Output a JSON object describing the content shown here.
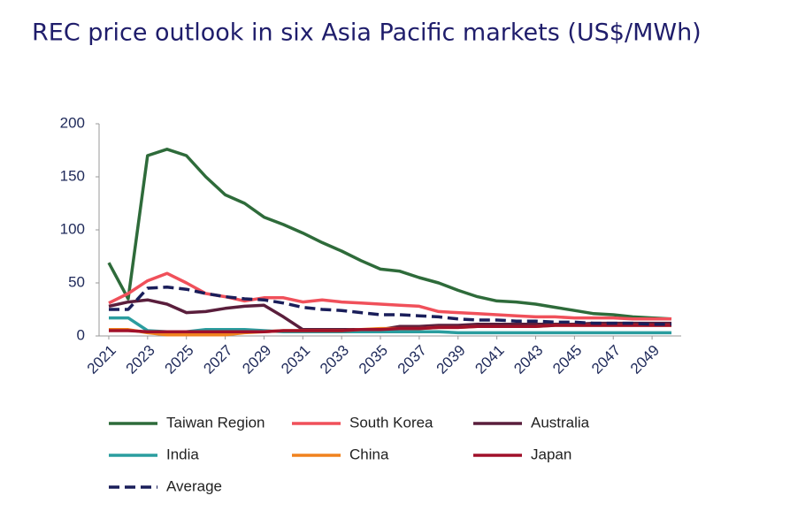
{
  "chart_data": {
    "type": "line",
    "title": "REC price outlook in six Asia Pacific markets (US$/MWh)",
    "x": [
      2021,
      2022,
      2023,
      2024,
      2025,
      2026,
      2027,
      2028,
      2029,
      2030,
      2031,
      2032,
      2033,
      2034,
      2035,
      2036,
      2037,
      2038,
      2039,
      2040,
      2041,
      2042,
      2043,
      2044,
      2045,
      2046,
      2047,
      2048,
      2049,
      2050
    ],
    "xlim": [
      2020.5,
      2050.5
    ],
    "xticks": [
      2021,
      2023,
      2025,
      2027,
      2029,
      2031,
      2033,
      2035,
      2037,
      2039,
      2041,
      2043,
      2045,
      2047,
      2049
    ],
    "ylim": [
      0,
      200
    ],
    "yticks": [
      0,
      50,
      100,
      150,
      200
    ],
    "grid": false,
    "legend": "bottom",
    "series": [
      {
        "name": "Taiwan Region",
        "color": "#2e6b3a",
        "style": "solid",
        "values": [
          69,
          35,
          170,
          176,
          170,
          150,
          133,
          125,
          112,
          105,
          97,
          88,
          80,
          71,
          63,
          61,
          55,
          50,
          43,
          37,
          33,
          32,
          30,
          27,
          24,
          21,
          20,
          18,
          17,
          16
        ]
      },
      {
        "name": "South Korea",
        "color": "#f0505a",
        "style": "solid",
        "values": [
          31,
          40,
          52,
          59,
          50,
          40,
          37,
          33,
          36,
          36,
          32,
          34,
          32,
          31,
          30,
          29,
          28,
          23,
          22,
          21,
          20,
          19,
          18,
          18,
          17,
          17,
          17,
          16,
          16,
          16
        ]
      },
      {
        "name": "Australia",
        "color": "#5a1e3c",
        "style": "solid",
        "values": [
          28,
          32,
          34,
          30,
          22,
          23,
          26,
          28,
          29,
          18,
          6,
          6,
          6,
          6,
          6,
          9,
          9,
          10,
          10,
          11,
          11,
          11,
          11,
          11,
          11,
          12,
          12,
          12,
          12,
          12
        ]
      },
      {
        "name": "India",
        "color": "#2a9d9f",
        "style": "solid",
        "values": [
          17,
          17,
          5,
          4,
          4,
          6,
          6,
          6,
          5,
          4,
          4,
          4,
          4,
          4,
          4,
          4,
          4,
          4,
          3,
          3,
          3,
          3,
          3,
          3,
          3,
          3,
          3,
          3,
          3,
          3
        ]
      },
      {
        "name": "China",
        "color": "#f0821e",
        "style": "solid",
        "values": [
          6,
          6,
          3,
          1,
          1,
          1,
          1,
          3,
          4,
          5,
          5,
          5,
          5,
          6,
          7,
          7,
          7,
          8,
          8,
          9,
          9,
          9,
          9,
          10,
          10,
          10,
          10,
          10,
          10,
          10
        ]
      },
      {
        "name": "Japan",
        "color": "#a0102a",
        "style": "solid",
        "values": [
          5,
          5,
          4,
          4,
          4,
          4,
          4,
          4,
          4,
          5,
          5,
          5,
          5,
          6,
          6,
          7,
          7,
          8,
          8,
          9,
          9,
          9,
          9,
          10,
          10,
          10,
          10,
          10,
          10,
          10
        ]
      },
      {
        "name": "Average",
        "color": "#1a1e5a",
        "style": "dashed",
        "values": [
          25,
          25,
          45,
          46,
          44,
          40,
          37,
          35,
          34,
          31,
          27,
          25,
          24,
          22,
          20,
          20,
          19,
          18,
          16,
          15,
          15,
          14,
          14,
          13,
          13,
          12,
          12,
          12,
          11,
          11
        ]
      }
    ]
  }
}
